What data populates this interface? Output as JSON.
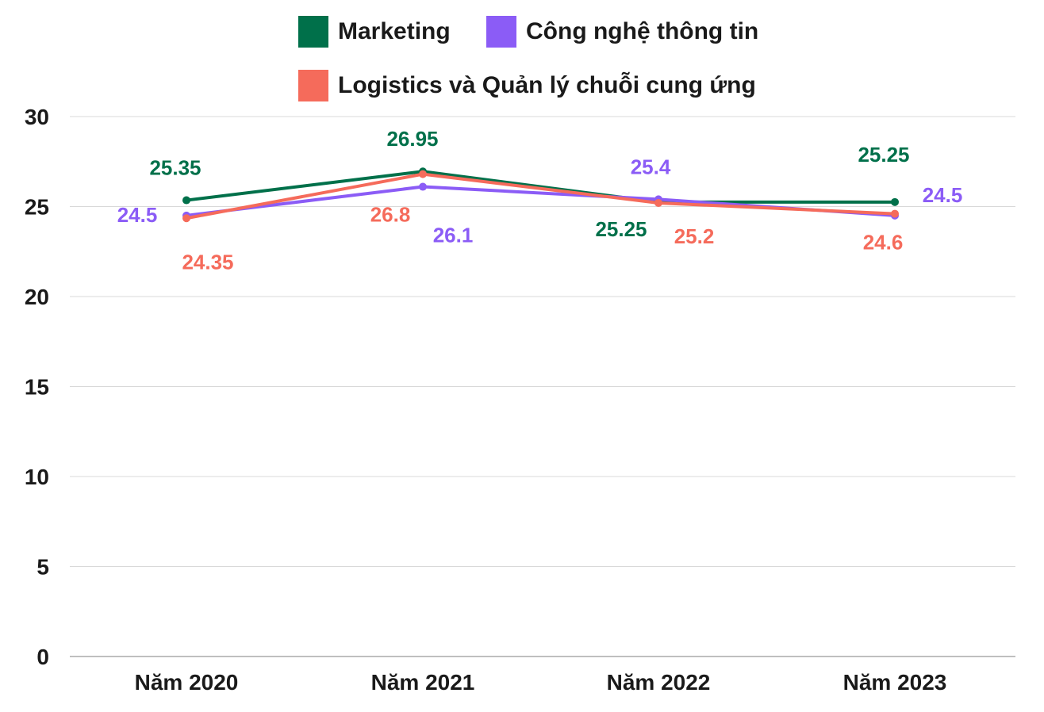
{
  "chart_data": {
    "type": "line",
    "categories": [
      "Năm 2020",
      "Năm 2021",
      "Năm 2022",
      "Năm 2023"
    ],
    "series": [
      {
        "name": "Marketing",
        "color": "#00704A",
        "values": [
          25.35,
          26.95,
          25.25,
          25.25
        ]
      },
      {
        "name": "Công nghệ thông tin",
        "color": "#8B5CF6",
        "values": [
          24.5,
          26.1,
          25.4,
          24.5
        ]
      },
      {
        "name": "Logistics và Quản lý chuỗi cung ứng",
        "color": "#F56B5B",
        "values": [
          24.35,
          26.8,
          25.2,
          24.6
        ]
      }
    ],
    "ylim": [
      0,
      30
    ],
    "yticks": [
      "0",
      "5",
      "10",
      "15",
      "20",
      "25",
      "30"
    ],
    "grid": true,
    "legend_position": "top",
    "data_labels": [
      [
        "25.35",
        "26.95",
        "25.25",
        "25.25"
      ],
      [
        "24.5",
        "26.1",
        "25.4",
        "24.5"
      ],
      [
        "24.35",
        "26.8",
        "25.2",
        "24.6"
      ]
    ]
  }
}
